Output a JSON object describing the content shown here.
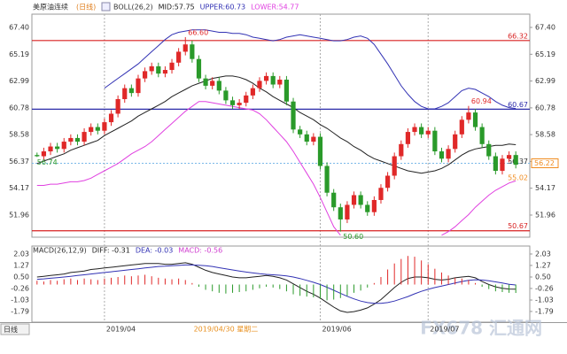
{
  "header": {
    "symbol": "美原油连续",
    "period": "(日线)"
  },
  "footer": {
    "button": "日线",
    "watermark": "FX678 汇通网"
  },
  "chart_data": [
    {
      "type": "candlestick",
      "title": "BOLL(26,2)",
      "categories": [
        null,
        null,
        null,
        null,
        null,
        null,
        null,
        null,
        null,
        null,
        "2019/04",
        null,
        null,
        null,
        null,
        null,
        null,
        null,
        null,
        null,
        null,
        null,
        null,
        null,
        null,
        null,
        null,
        null,
        "2019/04/30 星期二",
        null,
        null,
        null,
        null,
        null,
        null,
        null,
        null,
        null,
        null,
        null,
        null,
        null,
        "2019/06",
        null,
        null,
        null,
        null,
        null,
        null,
        null,
        null,
        null,
        null,
        null,
        null,
        null,
        null,
        null,
        "2019/07",
        null,
        null,
        null,
        null,
        null,
        null,
        null,
        null,
        null,
        null,
        null,
        null,
        null
      ],
      "open": [
        56.9,
        56.8,
        57.2,
        57.6,
        57.4,
        58.0,
        58.3,
        58.0,
        58.8,
        59.2,
        58.9,
        59.6,
        60.3,
        61.5,
        62.4,
        62.0,
        63.2,
        63.8,
        64.2,
        63.6,
        63.9,
        64.5,
        65.4,
        66.0,
        64.8,
        63.2,
        62.6,
        63.0,
        62.2,
        61.4,
        61.0,
        61.2,
        61.8,
        62.4,
        63.0,
        63.4,
        62.7,
        63.1,
        61.3,
        59.0,
        58.6,
        58.0,
        58.4,
        56.0,
        53.8,
        52.6,
        51.6,
        52.8,
        53.6,
        52.8,
        52.2,
        53.2,
        54.2,
        55.2,
        56.8,
        57.8,
        58.8,
        59.2,
        58.6,
        58.9,
        57.2,
        56.6,
        57.4,
        58.6,
        59.8,
        60.4,
        59.2,
        57.8,
        56.8,
        55.6,
        56.6,
        56.9
      ],
      "high": [
        57.1,
        57.5,
        57.9,
        57.9,
        58.3,
        58.6,
        58.6,
        59.1,
        59.5,
        59.5,
        59.9,
        60.6,
        61.8,
        62.7,
        62.7,
        63.5,
        64.1,
        64.5,
        64.5,
        64.2,
        64.8,
        65.7,
        66.6,
        66.3,
        65.1,
        63.5,
        63.3,
        63.3,
        62.5,
        61.7,
        61.5,
        62.1,
        62.7,
        63.3,
        63.7,
        63.7,
        63.4,
        63.4,
        61.6,
        59.3,
        58.9,
        58.7,
        58.7,
        56.3,
        54.1,
        52.9,
        53.1,
        53.9,
        53.9,
        53.1,
        53.5,
        54.5,
        55.5,
        57.1,
        58.1,
        59.1,
        59.5,
        59.5,
        59.2,
        59.2,
        57.5,
        57.7,
        58.9,
        60.1,
        60.94,
        60.7,
        59.5,
        58.1,
        57.1,
        56.9,
        57.2,
        57.2
      ],
      "low": [
        56.74,
        56.5,
        56.9,
        57.1,
        57.1,
        57.7,
        57.7,
        57.7,
        58.5,
        58.6,
        58.6,
        59.3,
        60.0,
        61.2,
        61.7,
        61.7,
        62.9,
        63.5,
        63.3,
        63.3,
        63.6,
        64.2,
        65.1,
        64.5,
        62.9,
        62.3,
        62.3,
        61.9,
        61.1,
        60.7,
        60.7,
        60.9,
        61.5,
        62.1,
        62.7,
        62.4,
        62.4,
        61.0,
        58.7,
        58.3,
        57.7,
        57.7,
        55.7,
        53.5,
        52.3,
        50.6,
        51.3,
        52.5,
        52.5,
        51.9,
        51.9,
        52.9,
        53.9,
        54.9,
        56.5,
        57.5,
        58.5,
        58.3,
        58.3,
        56.9,
        56.3,
        56.3,
        57.1,
        58.3,
        59.5,
        58.9,
        57.5,
        56.5,
        55.3,
        55.3,
        56.3,
        55.8
      ],
      "close": [
        56.8,
        57.2,
        57.6,
        57.4,
        58.0,
        58.3,
        58.0,
        58.8,
        59.2,
        58.9,
        59.6,
        60.3,
        61.5,
        62.4,
        62.0,
        63.2,
        63.8,
        64.2,
        63.6,
        63.9,
        64.5,
        65.4,
        66.0,
        64.8,
        63.2,
        62.6,
        63.0,
        62.2,
        61.4,
        61.0,
        61.2,
        61.8,
        62.4,
        63.0,
        63.4,
        62.7,
        63.1,
        61.3,
        59.0,
        58.6,
        58.0,
        58.4,
        56.0,
        53.8,
        52.6,
        51.6,
        52.8,
        53.6,
        52.8,
        52.2,
        53.2,
        54.2,
        55.2,
        56.8,
        57.8,
        58.8,
        59.2,
        58.6,
        58.9,
        57.2,
        56.6,
        57.4,
        58.6,
        59.8,
        60.4,
        59.2,
        57.8,
        56.8,
        55.6,
        56.6,
        56.9,
        56.1
      ],
      "up_color": "#e02828",
      "down_color": "#2a9a2a",
      "series": [
        {
          "name": "MID:57.75",
          "color": "#222222",
          "values": [
            56.2,
            56.4,
            56.6,
            56.8,
            57.0,
            57.3,
            57.5,
            57.7,
            57.9,
            58.1,
            58.5,
            58.8,
            59.1,
            59.4,
            59.7,
            60.1,
            60.4,
            60.7,
            61.0,
            61.3,
            61.7,
            62.0,
            62.3,
            62.6,
            62.8,
            63.0,
            63.2,
            63.3,
            63.4,
            63.4,
            63.3,
            63.1,
            62.8,
            62.4,
            62.1,
            61.7,
            61.4,
            61.1,
            60.8,
            60.4,
            60.1,
            59.8,
            59.4,
            59.1,
            58.7,
            58.3,
            58.0,
            57.6,
            57.3,
            56.9,
            56.6,
            56.4,
            56.2,
            56.0,
            55.8,
            55.6,
            55.5,
            55.4,
            55.5,
            55.6,
            55.8,
            56.1,
            56.5,
            56.9,
            57.2,
            57.4,
            57.5,
            57.6,
            57.7,
            57.7,
            57.8,
            57.75
          ]
        },
        {
          "name": "UPPER:60.73",
          "color": "#3232b4",
          "values": [
            null,
            null,
            null,
            null,
            null,
            null,
            null,
            null,
            null,
            null,
            62.4,
            62.8,
            63.2,
            63.6,
            64.0,
            64.4,
            64.9,
            65.4,
            65.9,
            66.4,
            66.8,
            67.0,
            67.1,
            67.2,
            67.2,
            67.2,
            67.1,
            67.0,
            67.0,
            66.9,
            66.9,
            66.8,
            66.6,
            66.5,
            66.4,
            66.3,
            66.4,
            66.6,
            66.7,
            66.8,
            66.7,
            66.6,
            66.5,
            66.4,
            66.3,
            66.3,
            66.4,
            66.6,
            66.7,
            66.5,
            66.0,
            65.2,
            64.4,
            63.5,
            62.6,
            61.9,
            61.3,
            60.9,
            60.7,
            60.7,
            60.9,
            61.2,
            61.7,
            62.2,
            62.4,
            62.3,
            62.0,
            61.7,
            61.3,
            61.0,
            60.8,
            60.73
          ]
        },
        {
          "name": "LOWER:54.77",
          "color": "#e040e0",
          "values": [
            54.4,
            54.4,
            54.5,
            54.5,
            54.6,
            54.7,
            54.7,
            54.8,
            55.0,
            55.3,
            55.6,
            55.9,
            56.2,
            56.6,
            57.0,
            57.3,
            57.6,
            58.0,
            58.5,
            59.0,
            59.5,
            60.0,
            60.5,
            60.9,
            61.3,
            61.3,
            61.2,
            61.1,
            61.0,
            60.9,
            60.8,
            60.7,
            60.6,
            60.3,
            59.8,
            59.2,
            58.6,
            58.0,
            57.2,
            56.3,
            55.4,
            54.5,
            53.4,
            52.2,
            51.0,
            50.3,
            null,
            null,
            null,
            null,
            null,
            null,
            null,
            null,
            null,
            null,
            null,
            null,
            null,
            null,
            50.3,
            50.6,
            51.0,
            51.5,
            52.0,
            52.6,
            53.1,
            53.6,
            54.0,
            54.3,
            54.6,
            54.77
          ]
        }
      ],
      "ylim": [
        50.14,
        68.49
      ],
      "yticks": [
        {
          "value": 67.4,
          "label": "67.40"
        },
        65.19,
        62.99,
        60.78,
        58.58,
        56.37,
        54.17,
        51.96
      ],
      "hlines": [
        {
          "value": 66.32,
          "color": "#d82020"
        },
        {
          "value": 60.67,
          "color": "#2a2aa8"
        },
        {
          "value": 50.67,
          "color": "#d82020"
        }
      ],
      "current_price": {
        "value": 56.22,
        "color": "#f08c20",
        "line_color": "#7ab8e8"
      },
      "tags": [
        {
          "value": 56.37,
          "color": "#333333"
        },
        {
          "value": 55.02,
          "color": "#f08c20"
        }
      ],
      "annotations": [
        {
          "value": 66.6,
          "label": "66.60"
        },
        {
          "value": 50.6,
          "label": "50.60"
        },
        {
          "value": 60.94,
          "label": "60.94"
        },
        {
          "value": 56.74,
          "label": "56.74"
        }
      ],
      "cursor": {
        "category": "2019/04/30 星期二",
        "color": "#e89020"
      }
    },
    {
      "type": "macd",
      "title": "MACD(26,12,9)",
      "series": [
        {
          "name": "DIFF: -0.31",
          "color": "#222222",
          "values": [
            0.5,
            0.55,
            0.6,
            0.65,
            0.7,
            0.8,
            0.85,
            0.9,
            1.0,
            1.05,
            1.1,
            1.15,
            1.2,
            1.25,
            1.3,
            1.35,
            1.4,
            1.4,
            1.4,
            1.35,
            1.35,
            1.4,
            1.45,
            1.35,
            1.15,
            0.95,
            0.8,
            0.7,
            0.6,
            0.5,
            0.45,
            0.45,
            0.5,
            0.55,
            0.6,
            0.55,
            0.45,
            0.3,
            0.05,
            -0.2,
            -0.45,
            -0.65,
            -0.9,
            -1.2,
            -1.5,
            -1.75,
            -1.85,
            -1.8,
            -1.7,
            -1.55,
            -1.3,
            -1.0,
            -0.6,
            -0.2,
            0.15,
            0.4,
            0.5,
            0.5,
            0.45,
            0.35,
            0.3,
            0.35,
            0.45,
            0.5,
            0.55,
            0.45,
            0.2,
            0.0,
            -0.15,
            -0.25,
            -0.3,
            -0.31
          ]
        },
        {
          "name": "DEA: -0.03",
          "color": "#3232b4",
          "values": [
            0.35,
            0.38,
            0.42,
            0.46,
            0.5,
            0.55,
            0.6,
            0.65,
            0.7,
            0.75,
            0.8,
            0.85,
            0.9,
            0.95,
            1.0,
            1.05,
            1.1,
            1.15,
            1.2,
            1.22,
            1.25,
            1.27,
            1.3,
            1.3,
            1.28,
            1.25,
            1.2,
            1.12,
            1.05,
            0.97,
            0.9,
            0.83,
            0.77,
            0.72,
            0.68,
            0.65,
            0.62,
            0.57,
            0.5,
            0.4,
            0.28,
            0.15,
            0.0,
            -0.18,
            -0.38,
            -0.58,
            -0.78,
            -0.95,
            -1.1,
            -1.2,
            -1.25,
            -1.25,
            -1.2,
            -1.1,
            -0.95,
            -0.8,
            -0.62,
            -0.45,
            -0.32,
            -0.2,
            -0.1,
            0.0,
            0.1,
            0.2,
            0.28,
            0.32,
            0.3,
            0.25,
            0.18,
            0.1,
            0.02,
            -0.03
          ]
        },
        {
          "name": "MACD: -0.56",
          "color": "#d040d0",
          "kind": "histogram",
          "values": [
            0.25,
            0.2,
            0.3,
            0.25,
            0.35,
            0.4,
            0.3,
            0.4,
            0.35,
            0.3,
            0.4,
            0.45,
            0.5,
            0.6,
            0.55,
            0.6,
            0.65,
            0.55,
            0.45,
            0.4,
            0.35,
            0.4,
            0.3,
            0.1,
            -0.15,
            -0.35,
            -0.45,
            -0.55,
            -0.6,
            -0.55,
            -0.5,
            -0.45,
            -0.35,
            -0.25,
            -0.15,
            -0.2,
            -0.3,
            -0.45,
            -0.65,
            -0.75,
            -0.8,
            -0.85,
            -0.95,
            -1.05,
            -1.0,
            -0.9,
            -0.75,
            -0.55,
            -0.4,
            -0.2,
            0.1,
            0.5,
            1.0,
            1.4,
            1.7,
            1.9,
            1.85,
            1.6,
            1.35,
            1.05,
            0.8,
            0.6,
            0.45,
            0.4,
            0.3,
            0.1,
            -0.15,
            -0.3,
            -0.45,
            -0.5,
            -0.55,
            -0.56
          ]
        }
      ],
      "up_color": "#e02828",
      "down_color": "#2a9a2a",
      "ylim": [
        -2.5,
        2.56
      ],
      "yticks": [
        2.03,
        1.27,
        {
          "value": 0.5,
          "label": "0.50"
        },
        -0.26,
        -1.03,
        -1.79
      ]
    }
  ]
}
